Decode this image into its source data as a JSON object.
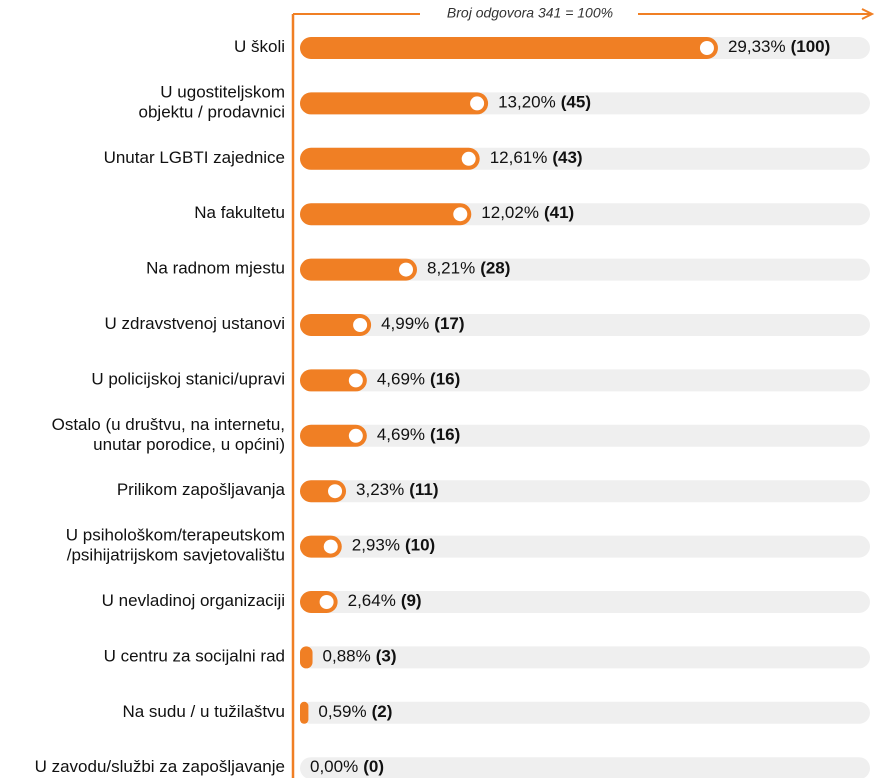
{
  "chart_data": {
    "type": "bar",
    "orientation": "horizontal",
    "annotation": "Broj odgovora 341 = 100%",
    "categories": [
      [
        "U školi"
      ],
      [
        "U ugostiteljskom",
        "objektu / prodavnici"
      ],
      [
        "Unutar LGBTI zajednice"
      ],
      [
        "Na fakultetu"
      ],
      [
        "Na radnom mjestu"
      ],
      [
        "U zdravstvenoj ustanovi"
      ],
      [
        "U policijskoj stanici/upravi"
      ],
      [
        "Ostalo (u društvu, na internetu,",
        "unutar porodice, u općini)"
      ],
      [
        "Prilikom zapošljavanja"
      ],
      [
        "U psihološkom/terapeutskom",
        "/psihijatrijskom savjetovalištu"
      ],
      [
        "U nevladinoj organizaciji"
      ],
      [
        "U centru za socijalni rad"
      ],
      [
        "Na sudu / u tužilaštvu"
      ],
      [
        "U zavodu/službi za zapošljavanje"
      ]
    ],
    "values": [
      29.33,
      13.2,
      12.61,
      12.02,
      8.21,
      4.99,
      4.69,
      4.69,
      3.23,
      2.93,
      2.64,
      0.88,
      0.59,
      0.0
    ],
    "value_labels": [
      "29,33%",
      "13,20%",
      "12,61%",
      "12,02%",
      "8,21%",
      "4,99%",
      "4,69%",
      "4,69%",
      "3,23%",
      "2,93%",
      "2,64%",
      "0,88%",
      "0,59%",
      "0,00%"
    ],
    "count_labels": [
      "(100)",
      "(45)",
      "(43)",
      "(41)",
      "(28)",
      "(17)",
      "(16)",
      "(16)",
      "(11)",
      "(10)",
      "(9)",
      "(3)",
      "(2)",
      "(0)"
    ],
    "xlim": [
      0,
      40
    ],
    "color": "#f07f24",
    "track_color": "#efefef"
  }
}
